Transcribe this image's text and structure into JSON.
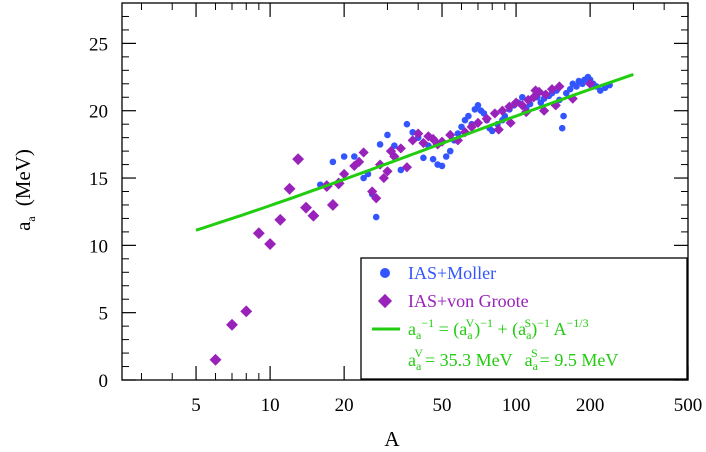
{
  "chart_data": {
    "type": "scatter",
    "xscale": "log",
    "xlim": [
      2.5,
      500
    ],
    "ylim": [
      0,
      28
    ],
    "xlabel": "A",
    "ylabel": {
      "main": "a",
      "sub": "a",
      "unit": "(MeV)"
    },
    "x_ticks": [
      5,
      10,
      20,
      50,
      100,
      200,
      500
    ],
    "x_minor_ticks": [
      3,
      4,
      6,
      7,
      8,
      9,
      30,
      40,
      60,
      70,
      80,
      90,
      300,
      400
    ],
    "y_ticks": [
      0,
      5,
      10,
      15,
      20,
      25
    ],
    "series": [
      {
        "name": "IAS+Moller",
        "color": "#3355ff",
        "marker": "circle",
        "points": [
          [
            16,
            14.5
          ],
          [
            18,
            16.2
          ],
          [
            20,
            16.6
          ],
          [
            22,
            16.6
          ],
          [
            24,
            15.0
          ],
          [
            25,
            15.3
          ],
          [
            26,
            13.8
          ],
          [
            27,
            12.1
          ],
          [
            28,
            17.5
          ],
          [
            30,
            18.2
          ],
          [
            32,
            17.4
          ],
          [
            34,
            15.6
          ],
          [
            36,
            19.0
          ],
          [
            38,
            18.4
          ],
          [
            40,
            18.0
          ],
          [
            42,
            16.5
          ],
          [
            44,
            17.4
          ],
          [
            46,
            16.4
          ],
          [
            48,
            16.0
          ],
          [
            50,
            15.9
          ],
          [
            52,
            16.6
          ],
          [
            54,
            17.0
          ],
          [
            56,
            17.8
          ],
          [
            58,
            18.3
          ],
          [
            60,
            18.8
          ],
          [
            62,
            19.3
          ],
          [
            64,
            19.6
          ],
          [
            66,
            19.0
          ],
          [
            68,
            20.1
          ],
          [
            70,
            20.4
          ],
          [
            72,
            20.0
          ],
          [
            74,
            19.8
          ],
          [
            76,
            19.3
          ],
          [
            78,
            18.7
          ],
          [
            80,
            18.5
          ],
          [
            84,
            19.0
          ],
          [
            88,
            19.3
          ],
          [
            90,
            19.6
          ],
          [
            94,
            20.1
          ],
          [
            98,
            20.4
          ],
          [
            102,
            20.6
          ],
          [
            106,
            21.0
          ],
          [
            110,
            20.2
          ],
          [
            114,
            20.5
          ],
          [
            118,
            21.0
          ],
          [
            122,
            21.0
          ],
          [
            126,
            20.6
          ],
          [
            130,
            20.9
          ],
          [
            136,
            21.1
          ],
          [
            140,
            21.3
          ],
          [
            146,
            21.5
          ],
          [
            150,
            20.8
          ],
          [
            154,
            18.7
          ],
          [
            156,
            19.6
          ],
          [
            160,
            21.3
          ],
          [
            166,
            21.6
          ],
          [
            170,
            22.0
          ],
          [
            176,
            21.8
          ],
          [
            180,
            22.2
          ],
          [
            186,
            22.0
          ],
          [
            190,
            22.3
          ],
          [
            196,
            22.5
          ],
          [
            200,
            22.3
          ],
          [
            206,
            22.0
          ],
          [
            212,
            21.8
          ],
          [
            220,
            21.5
          ],
          [
            230,
            21.7
          ],
          [
            240,
            21.9
          ]
        ]
      },
      {
        "name": "IAS+von Groote",
        "color": "#9922bb",
        "marker": "diamond",
        "points": [
          [
            6,
            1.5
          ],
          [
            7,
            4.1
          ],
          [
            8,
            5.1
          ],
          [
            9,
            10.9
          ],
          [
            10,
            10.1
          ],
          [
            11,
            11.9
          ],
          [
            12,
            14.2
          ],
          [
            13,
            16.4
          ],
          [
            14,
            12.8
          ],
          [
            15,
            12.2
          ],
          [
            17,
            14.4
          ],
          [
            18,
            13.0
          ],
          [
            19,
            14.6
          ],
          [
            20,
            15.3
          ],
          [
            22,
            15.9
          ],
          [
            23,
            16.2
          ],
          [
            24,
            16.9
          ],
          [
            26,
            14.0
          ],
          [
            27,
            13.5
          ],
          [
            28,
            16.0
          ],
          [
            29,
            15.0
          ],
          [
            30,
            15.5
          ],
          [
            31,
            17.0
          ],
          [
            32,
            16.6
          ],
          [
            34,
            17.2
          ],
          [
            36,
            15.8
          ],
          [
            38,
            17.8
          ],
          [
            40,
            18.3
          ],
          [
            42,
            17.6
          ],
          [
            44,
            18.1
          ],
          [
            46,
            17.9
          ],
          [
            48,
            17.5
          ],
          [
            50,
            17.7
          ],
          [
            54,
            18.2
          ],
          [
            58,
            17.8
          ],
          [
            62,
            18.4
          ],
          [
            66,
            18.8
          ],
          [
            70,
            19.1
          ],
          [
            76,
            19.4
          ],
          [
            82,
            19.8
          ],
          [
            88,
            20.0
          ],
          [
            94,
            20.3
          ],
          [
            100,
            20.6
          ],
          [
            106,
            20.4
          ],
          [
            112,
            20.8
          ],
          [
            118,
            21.0
          ],
          [
            124,
            21.4
          ],
          [
            132,
            21.2
          ],
          [
            140,
            21.6
          ],
          [
            150,
            21.8
          ],
          [
            120,
            21.5
          ],
          [
            95,
            19.1
          ],
          [
            85,
            18.6
          ],
          [
            110,
            19.9
          ],
          [
            130,
            20.0
          ],
          [
            145,
            20.4
          ],
          [
            170,
            20.9
          ],
          [
            200,
            22.0
          ]
        ]
      }
    ],
    "fit_line": {
      "label": "fit",
      "color": "#22cc11",
      "aV": 35.3,
      "aS": 9.5,
      "x_range": [
        5,
        300
      ]
    },
    "legend": {
      "placement": "bottom-right",
      "moller": "IAS+Moller",
      "groote": "IAS+von Groote",
      "formula": {
        "a": "a",
        "sub_a": "a",
        "sup_m1": "−1",
        "eq": " = (a",
        "sup_V": "V",
        "mid1": ")",
        "plus": " + (a",
        "sup_S": "S",
        "mid2": ")",
        "A": " A",
        "sup_third": "−1/3"
      },
      "params": {
        "aV_text": "= 35.3 MeV",
        "aS_text": "= 9.5 MeV",
        "V": "V",
        "S": "S"
      }
    }
  }
}
